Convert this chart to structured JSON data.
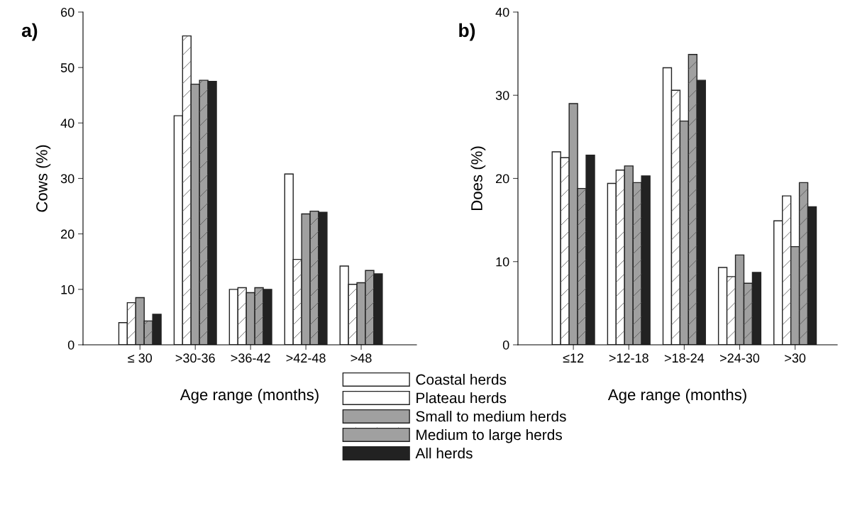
{
  "chart_data": [
    {
      "type": "bar",
      "title": "a)",
      "ylabel": "Cows (%)",
      "xlabel": "Age range (months)",
      "categories": [
        "≤ 30",
        ">30-36",
        ">36-42",
        ">42-48",
        ">48"
      ],
      "ylim": [
        0,
        60
      ],
      "yticks": [
        0,
        10,
        20,
        30,
        40,
        50,
        60
      ],
      "grid": false,
      "legend": "bottom",
      "series": [
        {
          "name": "Coastal herds",
          "color": "#ffffff",
          "values": [
            4.0,
            41.3,
            10.0,
            30.8,
            14.2
          ]
        },
        {
          "name": "Plateau herds",
          "color": "#ffffff",
          "values": [
            7.6,
            55.7,
            10.3,
            15.4,
            10.9
          ]
        },
        {
          "name": "Small to medium herds",
          "color": "#a0a0a0",
          "values": [
            8.5,
            47.0,
            9.4,
            23.6,
            11.2
          ]
        },
        {
          "name": "Medium to large herds",
          "color": "#a0a0a0",
          "values": [
            4.3,
            47.7,
            10.3,
            24.1,
            13.4
          ]
        },
        {
          "name": "All herds",
          "color": "#222222",
          "values": [
            5.5,
            47.5,
            10.0,
            23.9,
            12.8
          ]
        }
      ]
    },
    {
      "type": "bar",
      "title": "b)",
      "ylabel": "Does (%)",
      "xlabel": "Age range (months)",
      "categories": [
        "≤12",
        ">12-18",
        ">18-24",
        ">24-30",
        ">30"
      ],
      "ylim": [
        0,
        40
      ],
      "yticks": [
        0,
        10,
        20,
        30,
        40
      ],
      "grid": false,
      "series": [
        {
          "name": "Coastal herds",
          "color": "#ffffff",
          "values": [
            23.2,
            19.4,
            33.3,
            9.3,
            14.9
          ]
        },
        {
          "name": "Plateau herds",
          "color": "#ffffff",
          "values": [
            22.5,
            21.0,
            30.6,
            8.2,
            17.9
          ]
        },
        {
          "name": "Small to medium herds",
          "color": "#a0a0a0",
          "values": [
            29.0,
            21.5,
            26.9,
            10.8,
            11.8
          ]
        },
        {
          "name": "Medium to large herds",
          "color": "#a0a0a0",
          "values": [
            18.8,
            19.5,
            34.9,
            7.4,
            19.5
          ]
        },
        {
          "name": "All herds",
          "color": "#222222",
          "values": [
            22.8,
            20.3,
            31.8,
            8.7,
            16.6
          ]
        }
      ]
    }
  ]
}
